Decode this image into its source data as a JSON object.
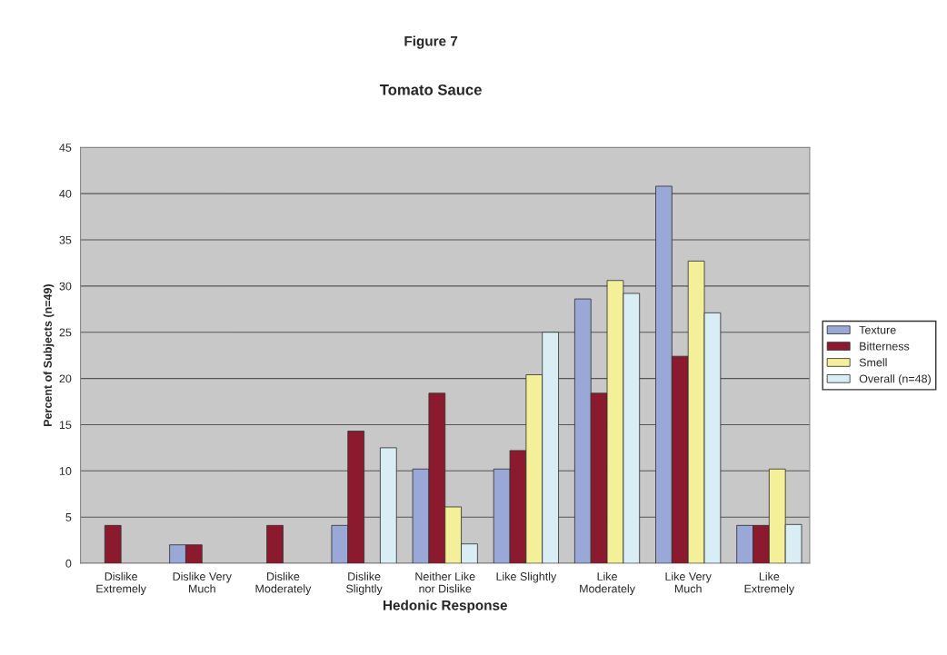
{
  "chart_data": {
    "type": "bar",
    "title": "Figure 7",
    "subtitle": "Tomato Sauce",
    "xlabel": "Hedonic Response",
    "ylabel": "Percent of Subjects (n=49)",
    "categories": [
      "Dislike\nExtremely",
      "Dislike Very\nMuch",
      "Dislike\nModerately",
      "Dislike\nSlightly",
      "Neither Like\nnor Dislike",
      "Like Slightly",
      "Like\nModerately",
      "Like Very\nMuch",
      "Like\nExtremely"
    ],
    "series": [
      {
        "name": "Texture",
        "color": "#9aa8d8",
        "values": [
          null,
          2.0,
          null,
          4.1,
          10.2,
          10.2,
          28.6,
          40.8,
          4.1
        ]
      },
      {
        "name": "Bitterness",
        "color": "#8b1a2e",
        "values": [
          4.1,
          2.0,
          4.1,
          14.3,
          18.4,
          12.2,
          18.4,
          22.4,
          4.1
        ]
      },
      {
        "name": "Smell",
        "color": "#f4f09a",
        "values": [
          null,
          null,
          null,
          null,
          6.1,
          20.4,
          30.6,
          32.7,
          10.2
        ]
      },
      {
        "name": "Overall (n=48)",
        "color": "#d8eef4",
        "values": [
          null,
          null,
          null,
          12.5,
          2.1,
          25.0,
          29.2,
          27.1,
          4.2
        ]
      }
    ],
    "ylim": [
      0,
      45
    ],
    "yticks": [
      0,
      5,
      10,
      15,
      20,
      25,
      30,
      35,
      40,
      45
    ],
    "grid": "y",
    "legend": "right"
  }
}
